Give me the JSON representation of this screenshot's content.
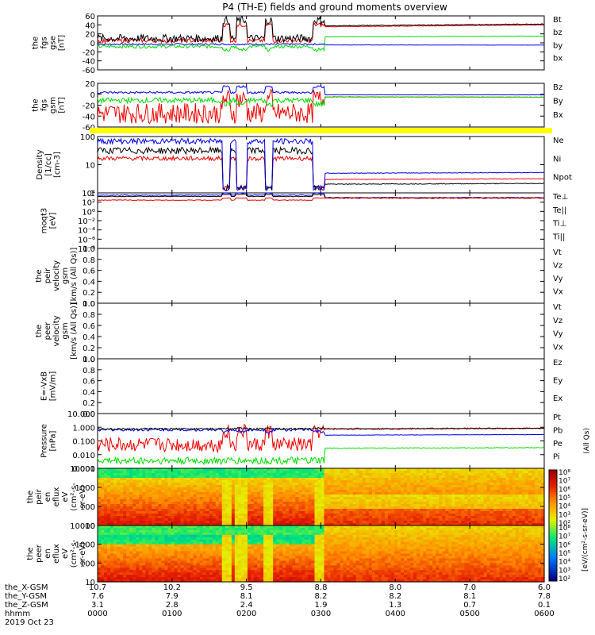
{
  "title": "P4 (TH-E) fields and ground moments overview",
  "colors": {
    "black": "#000000",
    "red": "#ee0000",
    "green": "#00dd00",
    "blue": "#0000ee",
    "yellow": "#ffff00"
  },
  "chart_data": {
    "type": "line",
    "x_axis": {
      "range": [
        "00:00",
        "06:00"
      ],
      "tick_times": [
        "0000",
        "0100",
        "0200",
        "0300",
        "0400",
        "0500",
        "0600"
      ],
      "ephemeris_rows": [
        {
          "label": "the_X-GSM",
          "values": [
            "10.7",
            "10.2",
            "9.5",
            "8.8",
            "8.0",
            "7.0",
            "6.0"
          ]
        },
        {
          "label": "the_Y-GSM",
          "values": [
            "7.6",
            "7.9",
            "8.1",
            "8.2",
            "8.2",
            "8.1",
            "7.8"
          ]
        },
        {
          "label": "the_Z-GSM",
          "values": [
            "3.1",
            "2.8",
            "2.4",
            "1.9",
            "1.3",
            "0.7",
            "0.1"
          ]
        },
        {
          "label": "hhmm",
          "values": [
            "0000",
            "0100",
            "0200",
            "0300",
            "0400",
            "0500",
            "0600"
          ]
        }
      ],
      "date_label": "2019 Oct 23"
    },
    "panels": [
      {
        "id": "fgs_gse",
        "ylabel": [
          "the",
          "fgs",
          "gse",
          "[nT]"
        ],
        "scale": "linear",
        "ylim": [
          -60,
          60
        ],
        "ticks": [
          "60",
          "40",
          "20",
          "0",
          "-20",
          "-40",
          "-60"
        ],
        "legend": [
          "Bt",
          "bz",
          "by",
          "bx"
        ]
      },
      {
        "id": "fgs_gsm",
        "ylabel": [
          "the",
          "fgs",
          "gsm",
          "[nT]"
        ],
        "scale": "linear",
        "ylim": [
          -70,
          25
        ],
        "ticks": [
          "20",
          "0",
          "-20",
          "-40",
          "-60"
        ],
        "legend": [
          "Bz",
          "By",
          "Bx"
        ]
      },
      {
        "id": "status_bar",
        "type": "bar",
        "color": "yellow"
      },
      {
        "id": "density",
        "ylabel": [
          "Density",
          "[1/cc]",
          "[cm-3]"
        ],
        "scale": "log",
        "ylim": [
          0.05,
          200
        ],
        "ticks": [
          "100",
          "10",
          "1"
        ],
        "legend": [
          "Ne",
          "Ni",
          "Npot"
        ]
      },
      {
        "id": "temperature",
        "ylabel": [
          "moqt3",
          "[eV]"
        ],
        "scale": "log",
        "ylim": [
          1e-09,
          10000.0
        ],
        "ticks": [
          "10⁴",
          "10²",
          "10⁰",
          "10⁻²",
          "10⁻⁴",
          "10⁻⁶",
          "10⁻⁸"
        ],
        "legend": [
          "Te⊥",
          "Te||",
          "Ti⊥",
          "Ti||"
        ]
      },
      {
        "id": "peir_velocity",
        "ylabel": [
          "the",
          "peir",
          "velocity",
          "gsm",
          "[km/s (All Qs)]"
        ],
        "scale": "linear",
        "ylim": [
          0,
          1
        ],
        "ticks": [
          "1.0",
          "0.8",
          "0.6",
          "0.4",
          "0.2",
          "0.0"
        ],
        "legend": [
          "Vt",
          "Vz",
          "Vy",
          "Vx"
        ]
      },
      {
        "id": "peer_velocity",
        "ylabel": [
          "the",
          "peer",
          "velocity",
          "gsm",
          "[km/s (All Qs)]"
        ],
        "scale": "linear",
        "ylim": [
          0,
          1
        ],
        "ticks": [
          "1.0",
          "0.8",
          "0.6",
          "0.4",
          "0.2",
          "0.0"
        ],
        "legend": [
          "Vt",
          "Vz",
          "Vy",
          "Vx"
        ]
      },
      {
        "id": "efield",
        "ylabel": [
          "E=-VxB",
          "[mV/m]"
        ],
        "scale": "linear",
        "ylim": [
          0,
          1
        ],
        "ticks": [
          "1.0",
          "0.8",
          "0.6",
          "0.4",
          "0.2",
          "0.0"
        ],
        "legend": [
          "Ez",
          "Ey",
          "Ex"
        ]
      },
      {
        "id": "pressure",
        "ylabel": [
          "Pressure",
          "[nPa]"
        ],
        "scale": "log",
        "ylim": [
          0.0008,
          12
        ],
        "ticks": [
          "10.000",
          "1.000",
          "0.100",
          "0.010",
          "0.001"
        ],
        "legend": [
          "Pt",
          "Pb",
          "Pe",
          "Pi"
        ],
        "right_label": "(All Qs)"
      },
      {
        "id": "peir_en_eflux",
        "ylabel": [
          "the",
          "peir",
          "en",
          "eflux",
          "eV",
          "(cm²-s-",
          "sr-eV)"
        ],
        "type": "heatmap",
        "scale": "log",
        "ylim": [
          5,
          25000
        ],
        "ticks": [
          "10000",
          "1000",
          "100",
          "10"
        ]
      },
      {
        "id": "peer_en_eflux",
        "ylabel": [
          "the",
          "peer",
          "en",
          "eflux",
          "eV",
          "(cm²-s-",
          "sr-eV)"
        ],
        "type": "heatmap",
        "scale": "log",
        "ylim": [
          5,
          25000
        ],
        "ticks": [
          "10000",
          "1000",
          "100",
          "10"
        ]
      }
    ],
    "colorbar": {
      "ticks_top": [
        "10⁸",
        "10⁷",
        "10⁶",
        "10⁵",
        "10⁴",
        "10³",
        "10²"
      ],
      "ticks_bottom": [
        "10⁸",
        "10⁷",
        "10⁶",
        "10⁵",
        "10⁴",
        "10³",
        "10²"
      ],
      "label": "[eV/(cm²-s-sr-eV)]"
    },
    "events": {
      "description_times": [
        1.73,
        1.83,
        2.0,
        2.27,
        2.9,
        3.07
      ],
      "magnetopause_crossing": 3.05
    },
    "series_levels": {
      "Bt": {
        "before": 10,
        "after": 42
      },
      "bz": {
        "before": 5,
        "after": 40
      },
      "by": {
        "before": -8,
        "after": 15
      },
      "bx": {
        "before": -3,
        "after": -5
      },
      "Bz": {
        "before": -40,
        "after": -5
      },
      "By": {
        "before": -12,
        "after": -5
      },
      "Bx": {
        "before": 5,
        "after": 0
      },
      "Ne": {
        "before": 8,
        "after": 0.4
      },
      "Ni": {
        "before": 25,
        "after": 0.2
      },
      "Npot": {
        "before": 100,
        "after": 1
      },
      "Pt": {
        "before": 0.8,
        "after": 0.9
      },
      "Pb": {
        "before": 0.05,
        "after": 0.9
      },
      "Pe": {
        "before": 0.003,
        "after": 0.03
      },
      "Pi": {
        "before": 0.7,
        "after": 0.3
      }
    }
  }
}
